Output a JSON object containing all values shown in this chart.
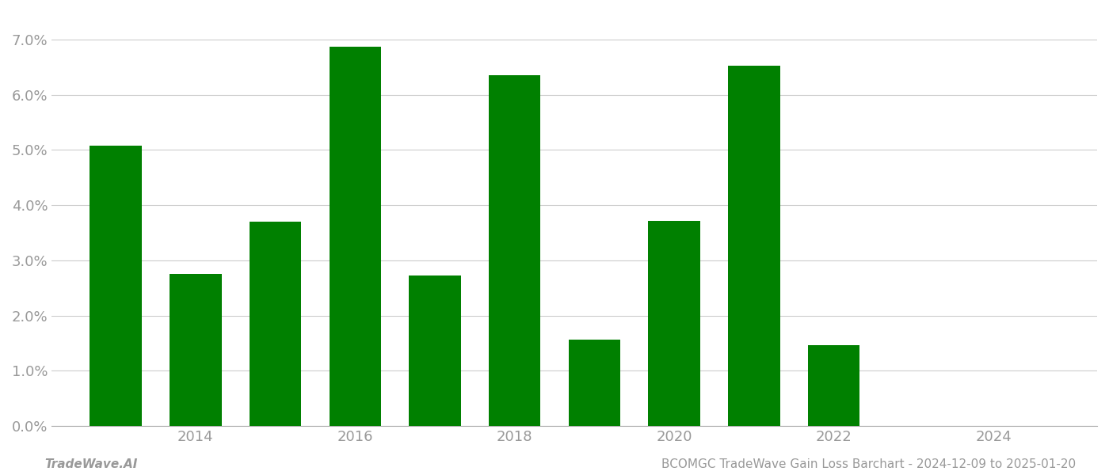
{
  "years": [
    2013,
    2014,
    2015,
    2016,
    2017,
    2018,
    2019,
    2020,
    2021,
    2022
  ],
  "values": [
    0.0507,
    0.0275,
    0.037,
    0.0687,
    0.0272,
    0.0635,
    0.0157,
    0.0372,
    0.0652,
    0.0147
  ],
  "bar_color": "#008000",
  "background_color": "#ffffff",
  "grid_color": "#cccccc",
  "tick_label_color": "#999999",
  "ylim": [
    0,
    0.075
  ],
  "yticks": [
    0.0,
    0.01,
    0.02,
    0.03,
    0.04,
    0.05,
    0.06,
    0.07
  ],
  "tick_fontsize": 13,
  "xtick_positions": [
    2014,
    2016,
    2018,
    2020,
    2022,
    2024
  ],
  "xlim_left": 2012.2,
  "xlim_right": 2025.3,
  "bar_width": 0.65,
  "footer_left": "TradeWave.AI",
  "footer_right": "BCOMGC TradeWave Gain Loss Barchart - 2024-12-09 to 2025-01-20",
  "footer_fontsize": 11,
  "footer_color": "#999999"
}
